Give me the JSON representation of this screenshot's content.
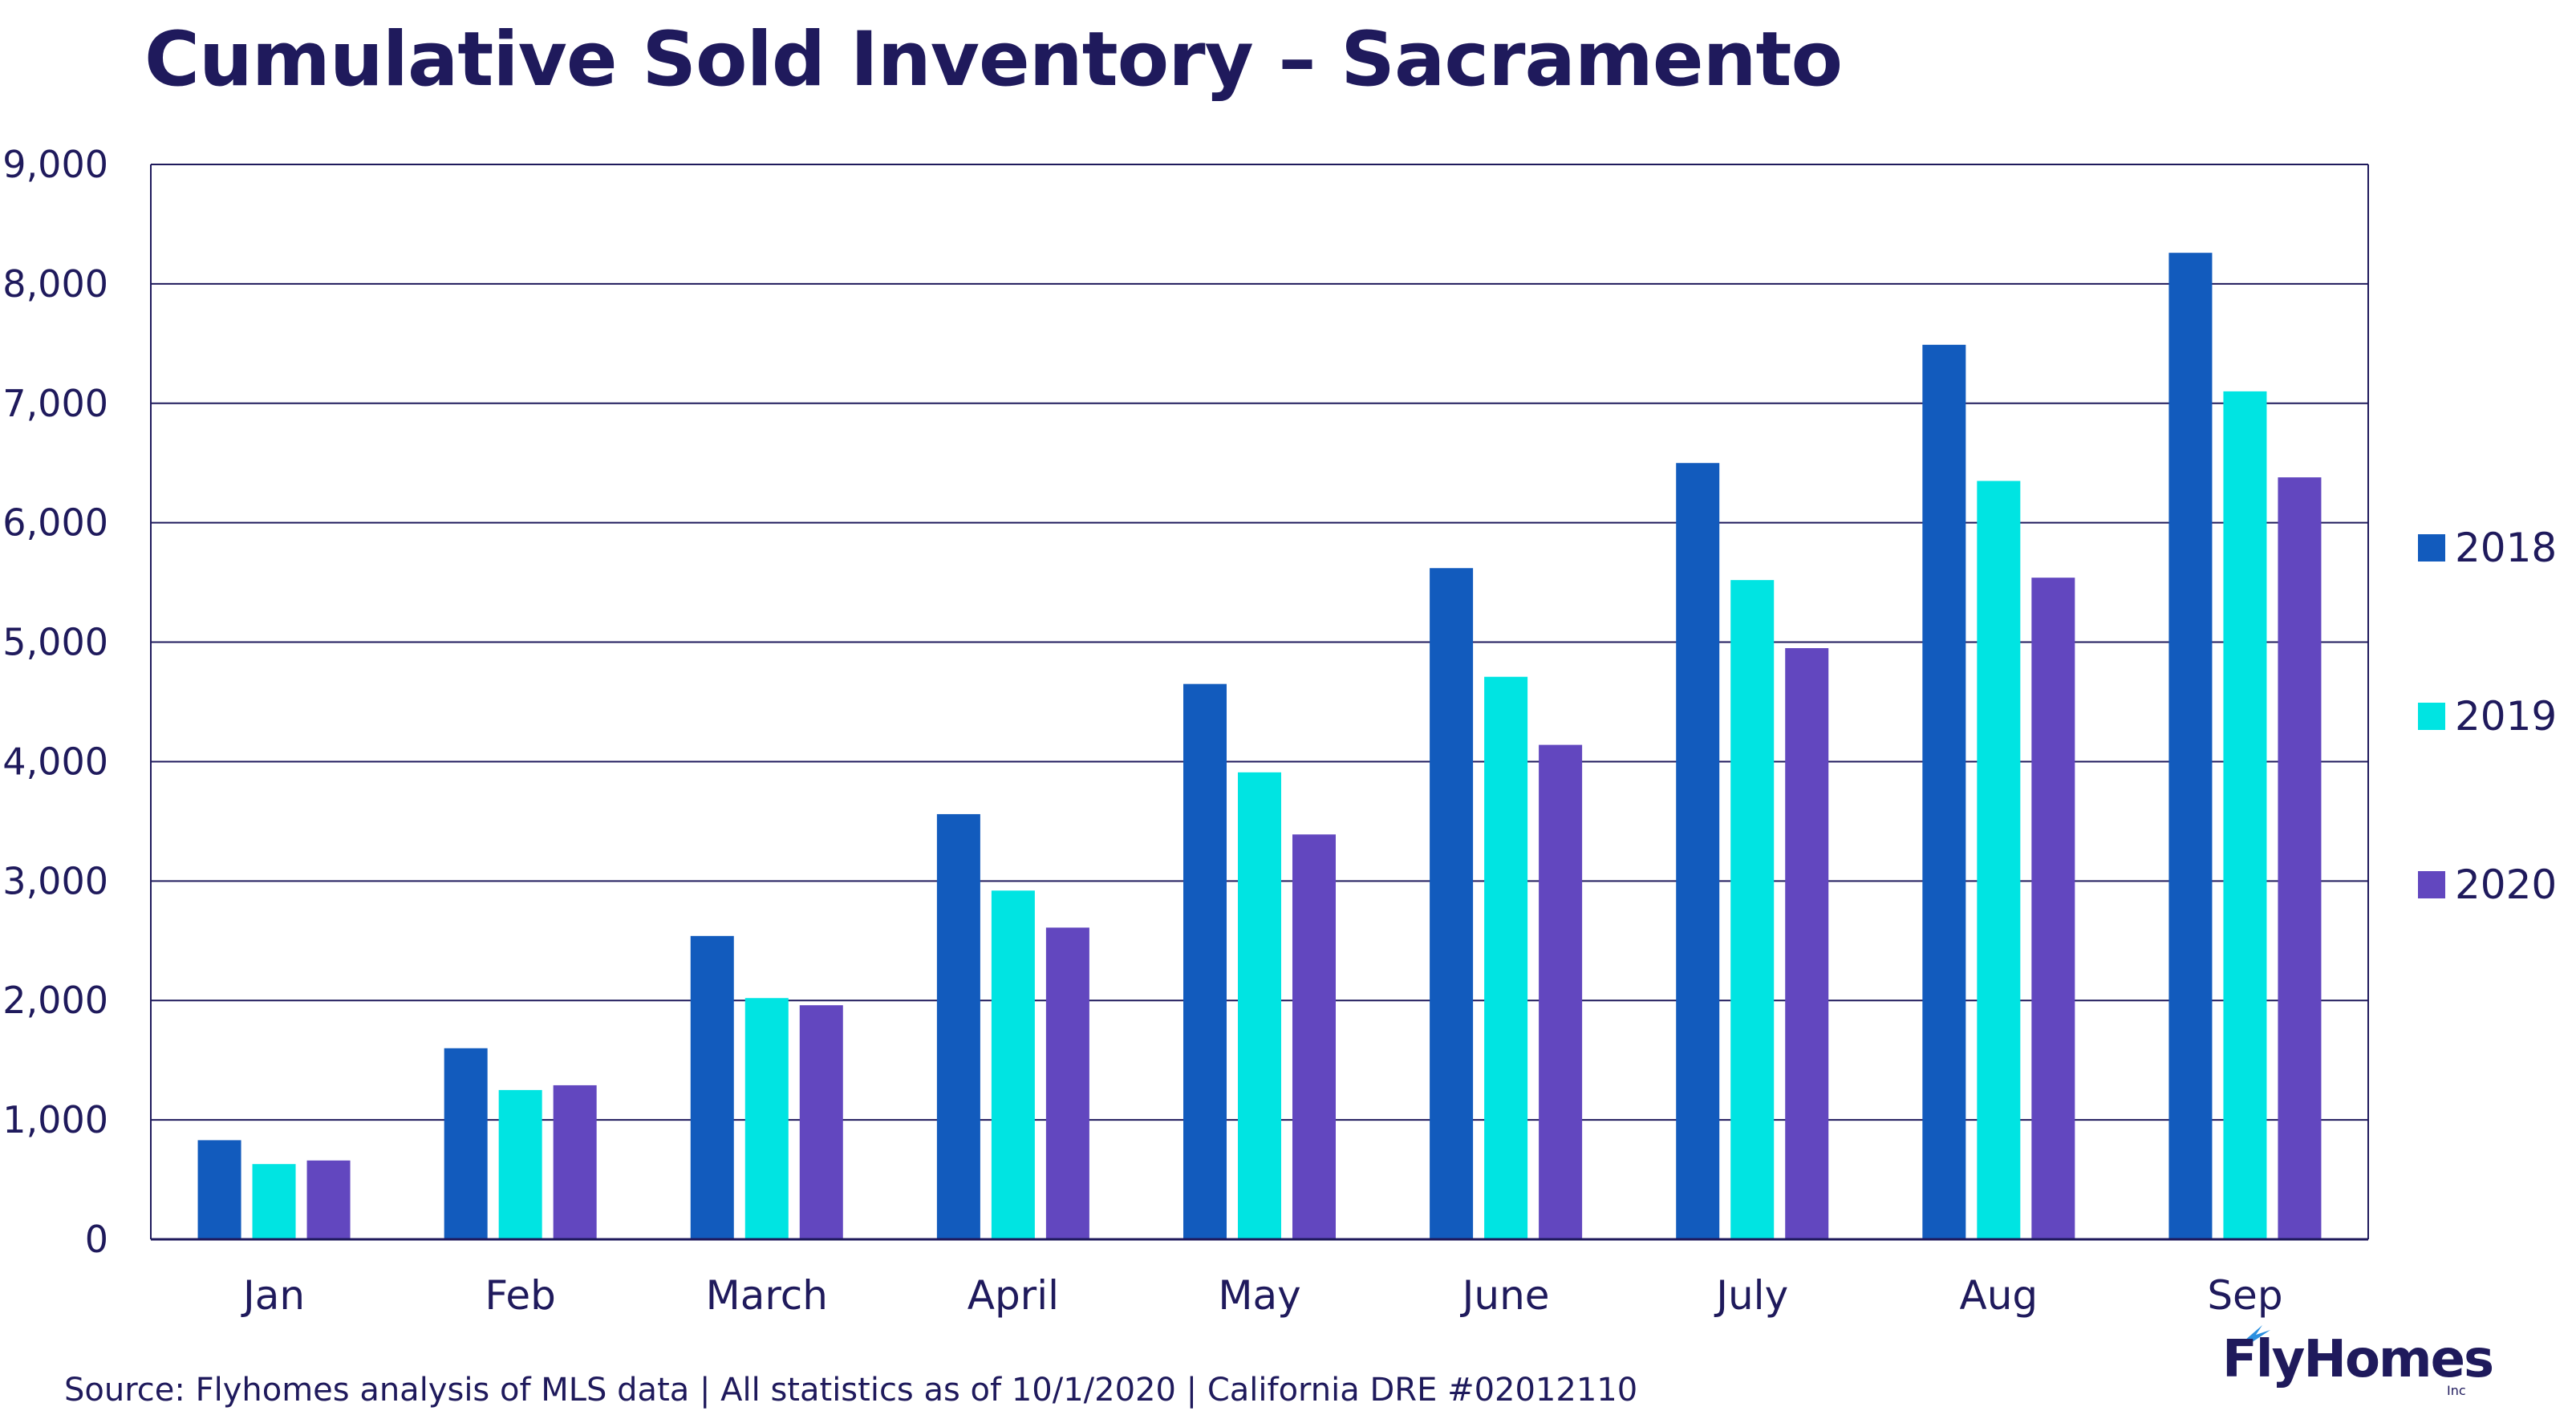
{
  "chart_data": {
    "type": "bar",
    "title": "Cumulative Sold Inventory – Sacramento",
    "categories": [
      "Jan",
      "Feb",
      "March",
      "April",
      "May",
      "June",
      "July",
      "Aug",
      "Sep"
    ],
    "series": [
      {
        "name": "2018",
        "color": "#125bbd",
        "values": [
          830,
          1600,
          2540,
          3560,
          4650,
          5620,
          6500,
          7490,
          8260
        ]
      },
      {
        "name": "2019",
        "color": "#00e4e2",
        "values": [
          630,
          1250,
          2020,
          2920,
          3910,
          4710,
          5520,
          6350,
          7100
        ]
      },
      {
        "name": "2020",
        "color": "#6247bf",
        "values": [
          660,
          1290,
          1960,
          2610,
          3390,
          4140,
          4950,
          5540,
          6380
        ]
      }
    ],
    "ylim": [
      0,
      9000
    ],
    "yticks": [
      0,
      1000,
      2000,
      3000,
      4000,
      5000,
      6000,
      7000,
      8000,
      9000
    ],
    "ytick_labels": [
      "0",
      "1,000",
      "2,000",
      "3,000",
      "4,000",
      "5,000",
      "6,000",
      "7,000",
      "8,000",
      "9,000"
    ],
    "grid": true,
    "legend_position": "right"
  },
  "footer": {
    "source": "Source: Flyhomes analysis of MLS data | All statistics as of 10/1/2020 | California DRE #02012110"
  },
  "logo": {
    "text": "FlyHomes",
    "sub": "Inc"
  },
  "colors": {
    "text": "#1f1a5c",
    "grid": "#1f1a5c"
  }
}
